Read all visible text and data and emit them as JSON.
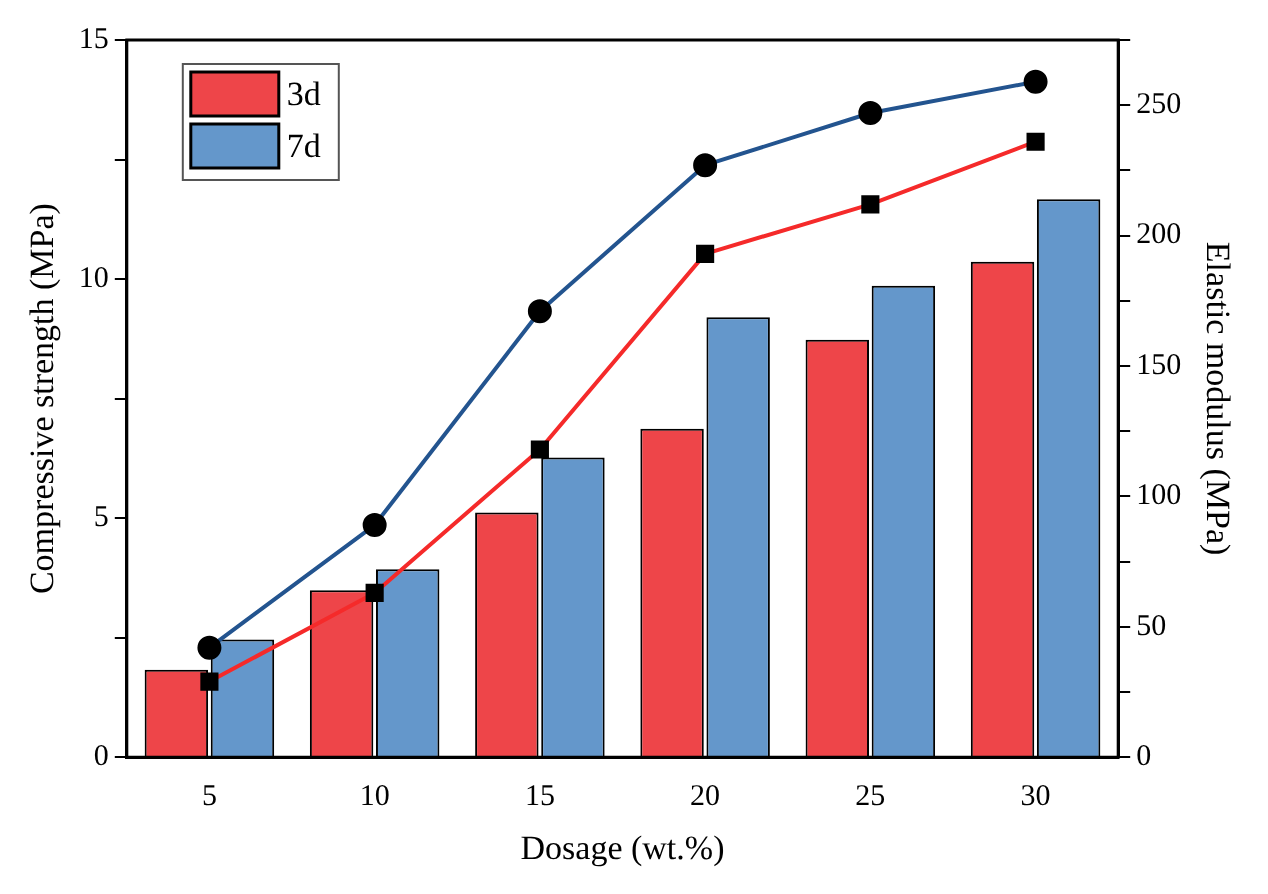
{
  "chart_data": {
    "type": "bar",
    "xlabel": "Dosage (wt.%)",
    "ylabel": "Compressive strength (MPa)",
    "y2label": "Elastic modulus (MPa)",
    "categories": [
      "5",
      "10",
      "15",
      "20",
      "25",
      "30"
    ],
    "series": [
      {
        "name": "3d",
        "color": "#ee4549",
        "values": [
          1.83,
          3.49,
          5.12,
          6.87,
          8.73,
          10.36
        ]
      },
      {
        "name": "7d",
        "color": "#6497cb",
        "values": [
          2.46,
          3.93,
          6.27,
          9.2,
          9.86,
          11.67
        ]
      },
      {
        "type": "line",
        "axis": "y2",
        "color": "#f52a2a",
        "marker": "square",
        "values": [
          29,
          63,
          118,
          193,
          212,
          236
        ]
      },
      {
        "type": "line",
        "axis": "y2",
        "color": "#23548f",
        "marker": "circle",
        "values": [
          42,
          89,
          171,
          227,
          247,
          259
        ]
      }
    ],
    "ylim": [
      0,
      15
    ],
    "yticks": [
      0,
      {
        "value": 2.5,
        "label": null
      },
      5,
      {
        "value": 7.5,
        "label": null
      },
      10,
      {
        "value": 12.5,
        "label": null
      },
      15
    ],
    "y2lim": [
      0,
      275
    ],
    "y2ticks": [
      0,
      {
        "value": 25,
        "label": null
      },
      50,
      {
        "value": 75,
        "label": null
      },
      100,
      {
        "value": 125,
        "label": null
      },
      150,
      {
        "value": 175,
        "label": null
      },
      200,
      {
        "value": 225,
        "label": null
      },
      250,
      {
        "value": 275,
        "label": null
      }
    ],
    "grid": false,
    "legend": "top left"
  }
}
